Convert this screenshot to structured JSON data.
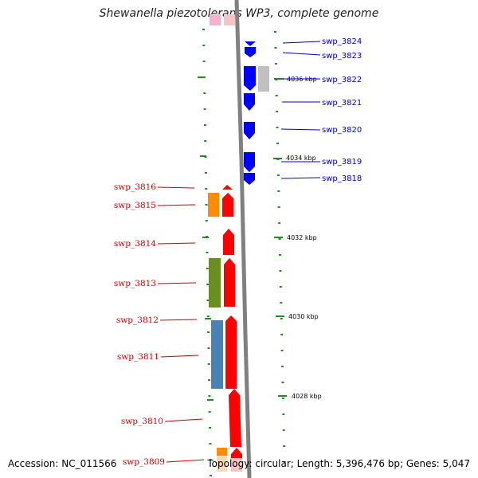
{
  "title": "Shewanella piezotolerans WP3, complete genome",
  "footer": {
    "accession": "Accession: NC_011566",
    "meta": "Topology: circular; Length: 5,396,476 bp; Genes: 5,047"
  },
  "colors": {
    "forward_gene": "#ff0000",
    "reverse_gene": "#0000ff",
    "reverse_label": "#0000cc",
    "forward_label": "#cc0000",
    "tick": "#228b22",
    "backbone": "#808080",
    "cog_orange": "#ff8c00",
    "cog_green": "#6b8e23",
    "cog_blue": "#4682b4",
    "cog_grey": "#c0c0c0"
  },
  "position_labels": [
    "4036 kbp",
    "4034 kbp",
    "4032 kbp",
    "4030 kbp",
    "4028 kbp"
  ],
  "right_genes": [
    "swp_3824",
    "swp_3823",
    "swp_3822",
    "swp_3821",
    "swp_3820",
    "swp_3819",
    "swp_3818"
  ],
  "left_genes": [
    "swp_3816",
    "swp_3815",
    "swp_3814",
    "swp_3813",
    "swp_3812",
    "swp_3811",
    "swp_3810",
    "swp_3809"
  ]
}
